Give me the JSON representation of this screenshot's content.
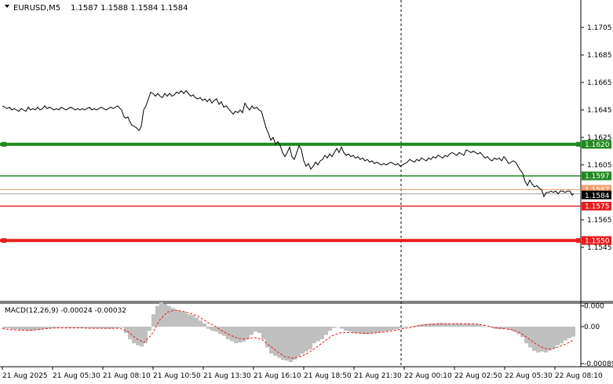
{
  "header": {
    "symbol_label": "EURUSD,M5",
    "ohlc": "1.1587 1.1588 1.1584 1.1584"
  },
  "price_axis": {
    "ticks": [
      "1.1705",
      "1.1685",
      "1.1665",
      "1.1645",
      "1.1625",
      "1.1605",
      "1.1565",
      "1.1545"
    ],
    "tick_values": [
      1.1705,
      1.1685,
      1.1665,
      1.1645,
      1.1625,
      1.1605,
      1.1565,
      1.1545
    ]
  },
  "levels": [
    {
      "name": "level-1-1620",
      "value": 1.162,
      "label": "1.1620",
      "color": "#1e8a1e",
      "thick": true
    },
    {
      "name": "level-1-1597",
      "value": 1.1597,
      "label": "1.1597",
      "color": "#1e8a1e",
      "thick": false
    },
    {
      "name": "level-1-1575",
      "value": 1.1575,
      "label": "1.1575",
      "color": "#e61e1e",
      "thick": false
    },
    {
      "name": "level-1-1550",
      "value": 1.155,
      "label": "1.1550",
      "color": "#e61e1e",
      "thick": true
    }
  ],
  "ask_label": "1.1587",
  "current_price_label": "1.1584",
  "macd": {
    "title": "MACD(12,26,9) -0.00024 -0.00032",
    "ticks": [
      "0.000",
      "0.00",
      "-0.00089"
    ],
    "tick_values": [
      0.0005,
      0.0,
      -0.00089
    ]
  },
  "time_axis": {
    "labels": [
      "21 Aug 2025",
      "21 Aug 05:30",
      "21 Aug 08:10",
      "21 Aug 10:50",
      "21 Aug 13:30",
      "21 Aug 16:10",
      "21 Aug 18:50",
      "21 Aug 21:30",
      "22 Aug 00:10",
      "22 Aug 02:50",
      "22 Aug 05:30",
      "22 Aug 08:10"
    ]
  },
  "colors": {
    "price_line": "#000000",
    "macd_hist": "#c0c0c0",
    "macd_signal": "#e61e1e",
    "ask_line": "#f0a070",
    "bid_line": "#a0a0a0",
    "current_label_bg": "#000000",
    "separator": "#000000"
  },
  "price_series": [
    [
      0,
      1.1648
    ],
    [
      3,
      1.1647
    ],
    [
      6,
      1.1646
    ],
    [
      9,
      1.1647
    ],
    [
      12,
      1.1645
    ],
    [
      15,
      1.1646
    ],
    [
      18,
      1.1645
    ],
    [
      21,
      1.1644
    ],
    [
      24,
      1.1646
    ],
    [
      27,
      1.1645
    ],
    [
      30,
      1.1644
    ],
    [
      33,
      1.1647
    ],
    [
      36,
      1.1645
    ],
    [
      39,
      1.1646
    ],
    [
      42,
      1.1645
    ],
    [
      45,
      1.1647
    ],
    [
      48,
      1.1645
    ],
    [
      51,
      1.1646
    ],
    [
      54,
      1.1648
    ],
    [
      57,
      1.1646
    ],
    [
      60,
      1.1647
    ],
    [
      63,
      1.1646
    ],
    [
      66,
      1.1645
    ],
    [
      69,
      1.1646
    ],
    [
      72,
      1.1645
    ],
    [
      75,
      1.1647
    ],
    [
      78,
      1.1646
    ],
    [
      81,
      1.1645
    ],
    [
      84,
      1.1646
    ],
    [
      87,
      1.1647
    ],
    [
      90,
      1.1646
    ],
    [
      93,
      1.1645
    ],
    [
      96,
      1.1646
    ],
    [
      99,
      1.1645
    ],
    [
      102,
      1.1646
    ],
    [
      105,
      1.1645
    ],
    [
      108,
      1.1646
    ],
    [
      111,
      1.1647
    ],
    [
      114,
      1.1645
    ],
    [
      117,
      1.1646
    ],
    [
      120,
      1.1645
    ],
    [
      123,
      1.1646
    ],
    [
      126,
      1.1647
    ],
    [
      129,
      1.1646
    ],
    [
      132,
      1.1645
    ],
    [
      135,
      1.1646
    ],
    [
      138,
      1.1647
    ],
    [
      141,
      1.1646
    ],
    [
      144,
      1.1647
    ],
    [
      147,
      1.1648
    ],
    [
      150,
      1.1646
    ],
    [
      152,
      1.1645
    ],
    [
      155,
      1.164
    ],
    [
      157,
      1.1639
    ],
    [
      160,
      1.164
    ],
    [
      162,
      1.1637
    ],
    [
      165,
      1.1634
    ],
    [
      168,
      1.1633
    ],
    [
      171,
      1.1632
    ],
    [
      174,
      1.163
    ],
    [
      177,
      1.1633
    ],
    [
      180,
      1.1645
    ],
    [
      183,
      1.1648
    ],
    [
      186,
      1.1653
    ],
    [
      189,
      1.1658
    ],
    [
      192,
      1.1657
    ],
    [
      195,
      1.1655
    ],
    [
      198,
      1.1657
    ],
    [
      201,
      1.1655
    ],
    [
      204,
      1.1654
    ],
    [
      207,
      1.1657
    ],
    [
      210,
      1.1655
    ],
    [
      213,
      1.1657
    ],
    [
      216,
      1.1655
    ],
    [
      219,
      1.1656
    ],
    [
      222,
      1.1658
    ],
    [
      225,
      1.1657
    ],
    [
      228,
      1.1659
    ],
    [
      231,
      1.1657
    ],
    [
      234,
      1.1659
    ],
    [
      237,
      1.1657
    ],
    [
      240,
      1.1655
    ],
    [
      243,
      1.1656
    ],
    [
      246,
      1.1654
    ],
    [
      249,
      1.1653
    ],
    [
      252,
      1.1654
    ],
    [
      255,
      1.1652
    ],
    [
      258,
      1.1653
    ],
    [
      261,
      1.1651
    ],
    [
      264,
      1.1653
    ],
    [
      267,
      1.165
    ],
    [
      270,
      1.1652
    ],
    [
      273,
      1.1653
    ],
    [
      276,
      1.1649
    ],
    [
      279,
      1.1651
    ],
    [
      282,
      1.1647
    ],
    [
      285,
      1.1648
    ],
    [
      288,
      1.1646
    ],
    [
      291,
      1.1644
    ],
    [
      294,
      1.1642
    ],
    [
      297,
      1.1644
    ],
    [
      300,
      1.1643
    ],
    [
      303,
      1.1645
    ],
    [
      306,
      1.1643
    ],
    [
      309,
      1.165
    ],
    [
      312,
      1.1647
    ],
    [
      315,
      1.1645
    ],
    [
      318,
      1.1648
    ],
    [
      321,
      1.1646
    ],
    [
      324,
      1.1647
    ],
    [
      327,
      1.1645
    ],
    [
      330,
      1.1644
    ],
    [
      333,
      1.1638
    ],
    [
      336,
      1.1632
    ],
    [
      339,
      1.1628
    ],
    [
      342,
      1.1623
    ],
    [
      345,
      1.1625
    ],
    [
      348,
      1.162
    ],
    [
      351,
      1.1622
    ],
    [
      354,
      1.1619
    ],
    [
      357,
      1.1614
    ],
    [
      360,
      1.1611
    ],
    [
      363,
      1.1614
    ],
    [
      366,
      1.1618
    ],
    [
      369,
      1.1611
    ],
    [
      372,
      1.1609
    ],
    [
      375,
      1.1614
    ],
    [
      378,
      1.1619
    ],
    [
      381,
      1.1616
    ],
    [
      384,
      1.1608
    ],
    [
      387,
      1.1604
    ],
    [
      390,
      1.1606
    ],
    [
      393,
      1.1602
    ],
    [
      396,
      1.1604
    ],
    [
      399,
      1.1607
    ],
    [
      402,
      1.1605
    ],
    [
      405,
      1.1608
    ],
    [
      408,
      1.1609
    ],
    [
      411,
      1.1612
    ],
    [
      414,
      1.161
    ],
    [
      417,
      1.1613
    ],
    [
      420,
      1.1611
    ],
    [
      423,
      1.1614
    ],
    [
      426,
      1.1617
    ],
    [
      429,
      1.1614
    ],
    [
      432,
      1.1618
    ],
    [
      435,
      1.1614
    ],
    [
      438,
      1.1612
    ],
    [
      441,
      1.1613
    ],
    [
      444,
      1.1611
    ],
    [
      447,
      1.1612
    ],
    [
      450,
      1.161
    ],
    [
      453,
      1.1611
    ],
    [
      456,
      1.1609
    ],
    [
      459,
      1.161
    ],
    [
      462,
      1.1608
    ],
    [
      465,
      1.1609
    ],
    [
      468,
      1.1607
    ],
    [
      471,
      1.1608
    ],
    [
      474,
      1.1606
    ],
    [
      477,
      1.1607
    ],
    [
      480,
      1.1606
    ],
    [
      483,
      1.1605
    ],
    [
      486,
      1.1606
    ],
    [
      489,
      1.1605
    ],
    [
      492,
      1.1606
    ],
    [
      495,
      1.1607
    ],
    [
      498,
      1.1606
    ],
    [
      501,
      1.1605
    ],
    [
      504,
      1.1606
    ],
    [
      507,
      1.1604
    ],
    [
      510,
      1.1605
    ],
    [
      513,
      1.1606
    ],
    [
      516,
      1.1607
    ],
    [
      519,
      1.1609
    ],
    [
      522,
      1.1608
    ],
    [
      525,
      1.1607
    ],
    [
      528,
      1.1609
    ],
    [
      531,
      1.1608
    ],
    [
      534,
      1.161
    ],
    [
      537,
      1.1609
    ],
    [
      540,
      1.1608
    ],
    [
      543,
      1.161
    ],
    [
      546,
      1.1609
    ],
    [
      549,
      1.1611
    ],
    [
      552,
      1.161
    ],
    [
      555,
      1.1612
    ],
    [
      558,
      1.1611
    ],
    [
      561,
      1.161
    ],
    [
      564,
      1.1612
    ],
    [
      567,
      1.1611
    ],
    [
      570,
      1.1613
    ],
    [
      573,
      1.1614
    ],
    [
      576,
      1.1613
    ],
    [
      579,
      1.1612
    ],
    [
      582,
      1.1614
    ],
    [
      585,
      1.1613
    ],
    [
      588,
      1.1612
    ],
    [
      591,
      1.1616
    ],
    [
      594,
      1.1615
    ],
    [
      597,
      1.1614
    ],
    [
      600,
      1.1615
    ],
    [
      603,
      1.1614
    ],
    [
      606,
      1.1613
    ],
    [
      609,
      1.1614
    ],
    [
      612,
      1.1612
    ],
    [
      615,
      1.161
    ],
    [
      618,
      1.1611
    ],
    [
      621,
      1.1609
    ],
    [
      624,
      1.1608
    ],
    [
      627,
      1.161
    ],
    [
      630,
      1.1609
    ],
    [
      633,
      1.161
    ],
    [
      636,
      1.1608
    ],
    [
      639,
      1.1611
    ],
    [
      642,
      1.1609
    ],
    [
      645,
      1.1606
    ],
    [
      648,
      1.1607
    ],
    [
      651,
      1.1608
    ],
    [
      654,
      1.1607
    ],
    [
      657,
      1.1604
    ],
    [
      660,
      1.1601
    ],
    [
      663,
      1.1599
    ],
    [
      666,
      1.1593
    ],
    [
      669,
      1.159
    ],
    [
      672,
      1.1594
    ],
    [
      675,
      1.1591
    ],
    [
      678,
      1.1589
    ],
    [
      681,
      1.159
    ],
    [
      684,
      1.1588
    ],
    [
      687,
      1.1587
    ],
    [
      690,
      1.1582
    ],
    [
      693,
      1.1585
    ],
    [
      696,
      1.1585
    ],
    [
      699,
      1.1586
    ],
    [
      702,
      1.1585
    ],
    [
      705,
      1.1586
    ],
    [
      708,
      1.1584
    ],
    [
      711,
      1.1586
    ],
    [
      714,
      1.1586
    ],
    [
      717,
      1.1585
    ],
    [
      720,
      1.1586
    ],
    [
      723,
      1.1586
    ],
    [
      726,
      1.1583
    ],
    [
      728,
      1.1584
    ]
  ],
  "macd_hist": [
    [
      0,
      -4e-05
    ],
    [
      10,
      -6e-05
    ],
    [
      20,
      -8e-05
    ],
    [
      30,
      -0.0001
    ],
    [
      40,
      -8e-05
    ],
    [
      50,
      -5e-05
    ],
    [
      60,
      -3e-05
    ],
    [
      70,
      -2e-05
    ],
    [
      80,
      -3e-05
    ],
    [
      90,
      -3e-05
    ],
    [
      100,
      -3e-05
    ],
    [
      110,
      -4e-05
    ],
    [
      120,
      -4e-05
    ],
    [
      130,
      -5e-05
    ],
    [
      140,
      -3e-05
    ],
    [
      150,
      -2e-05
    ],
    [
      155,
      -0.00015
    ],
    [
      160,
      -0.0003
    ],
    [
      165,
      -0.0004
    ],
    [
      170,
      -0.00045
    ],
    [
      175,
      -0.00048
    ],
    [
      180,
      -0.0004
    ],
    [
      185,
      -0.0001
    ],
    [
      190,
      0.0003
    ],
    [
      195,
      0.0005
    ],
    [
      200,
      0.0006
    ],
    [
      205,
      0.00055
    ],
    [
      210,
      0.0005
    ],
    [
      215,
      0.00045
    ],
    [
      220,
      0.0004
    ],
    [
      225,
      0.00037
    ],
    [
      230,
      0.00035
    ],
    [
      235,
      0.0003
    ],
    [
      240,
      0.00028
    ],
    [
      245,
      0.00022
    ],
    [
      250,
      0.00015
    ],
    [
      255,
      8e-05
    ],
    [
      260,
      -5e-05
    ],
    [
      265,
      -0.0001
    ],
    [
      270,
      -0.00012
    ],
    [
      275,
      -0.00018
    ],
    [
      280,
      -0.00022
    ],
    [
      285,
      -0.0003
    ],
    [
      290,
      -0.00035
    ],
    [
      295,
      -0.0004
    ],
    [
      300,
      -0.00038
    ],
    [
      305,
      -0.00036
    ],
    [
      310,
      -0.0003
    ],
    [
      315,
      -0.0002
    ],
    [
      320,
      -0.00012
    ],
    [
      325,
      -0.00015
    ],
    [
      330,
      -0.0003
    ],
    [
      335,
      -0.0005
    ],
    [
      340,
      -0.00065
    ],
    [
      345,
      -0.0007
    ],
    [
      350,
      -0.00075
    ],
    [
      355,
      -0.0008
    ],
    [
      360,
      -0.00082
    ],
    [
      365,
      -0.00085
    ],
    [
      370,
      -0.0008
    ],
    [
      375,
      -0.00072
    ],
    [
      380,
      -0.00065
    ],
    [
      385,
      -0.0006
    ],
    [
      390,
      -0.00055
    ],
    [
      395,
      -0.0004
    ],
    [
      400,
      -0.00035
    ],
    [
      405,
      -0.0003
    ],
    [
      410,
      -0.0002
    ],
    [
      415,
      -0.0001
    ],
    [
      420,
      -3e-05
    ],
    [
      425,
      0.0
    ],
    [
      430,
      -5e-05
    ],
    [
      435,
      -0.0001
    ],
    [
      440,
      -0.00012
    ],
    [
      445,
      -0.00015
    ],
    [
      450,
      -0.00016
    ],
    [
      455,
      -0.00017
    ],
    [
      460,
      -0.00018
    ],
    [
      465,
      -0.00017
    ],
    [
      470,
      -0.00016
    ],
    [
      475,
      -0.00015
    ],
    [
      480,
      -0.00013
    ],
    [
      485,
      -0.00011
    ],
    [
      490,
      -0.0001
    ],
    [
      495,
      -8e-05
    ],
    [
      500,
      -6e-05
    ],
    [
      505,
      -4e-05
    ],
    [
      510,
      -2e-05
    ],
    [
      515,
      0.0
    ],
    [
      520,
      2e-05
    ],
    [
      525,
      3e-05
    ],
    [
      530,
      5e-05
    ],
    [
      535,
      6e-05
    ],
    [
      540,
      7e-05
    ],
    [
      545,
      8e-05
    ],
    [
      550,
      8e-05
    ],
    [
      555,
      9e-05
    ],
    [
      560,
      8e-05
    ],
    [
      565,
      8e-05
    ],
    [
      570,
      7e-05
    ],
    [
      575,
      8e-05
    ],
    [
      580,
      8e-05
    ],
    [
      585,
      7e-05
    ],
    [
      590,
      8e-05
    ],
    [
      595,
      7e-05
    ],
    [
      600,
      6e-05
    ],
    [
      605,
      6e-05
    ],
    [
      610,
      3e-05
    ],
    [
      615,
      0.0
    ],
    [
      620,
      -2e-05
    ],
    [
      625,
      -5e-05
    ],
    [
      630,
      -6e-05
    ],
    [
      635,
      -6e-05
    ],
    [
      640,
      -5e-05
    ],
    [
      645,
      -8e-05
    ],
    [
      650,
      -0.00012
    ],
    [
      655,
      -0.00018
    ],
    [
      660,
      -0.00025
    ],
    [
      665,
      -0.0004
    ],
    [
      670,
      -0.0005
    ],
    [
      675,
      -0.00058
    ],
    [
      680,
      -0.00062
    ],
    [
      685,
      -0.0006
    ],
    [
      690,
      -0.00062
    ],
    [
      695,
      -0.00058
    ],
    [
      700,
      -0.00052
    ],
    [
      705,
      -0.00045
    ],
    [
      710,
      -0.0004
    ],
    [
      715,
      -0.00033
    ],
    [
      720,
      -0.00028
    ],
    [
      725,
      -0.00024
    ]
  ],
  "macd_signal": [
    [
      0,
      -5e-05
    ],
    [
      10,
      -7e-05
    ],
    [
      20,
      -8e-05
    ],
    [
      30,
      -9e-05
    ],
    [
      40,
      -8e-05
    ],
    [
      50,
      -6e-05
    ],
    [
      60,
      -4e-05
    ],
    [
      70,
      -3e-05
    ],
    [
      80,
      -3e-05
    ],
    [
      90,
      -3e-05
    ],
    [
      100,
      -3e-05
    ],
    [
      110,
      -4e-05
    ],
    [
      120,
      -4e-05
    ],
    [
      130,
      -4e-05
    ],
    [
      140,
      -4e-05
    ],
    [
      150,
      -4e-05
    ],
    [
      160,
      -0.00012
    ],
    [
      170,
      -0.00028
    ],
    [
      180,
      -0.00038
    ],
    [
      190,
      -0.0002
    ],
    [
      200,
      0.00015
    ],
    [
      210,
      0.00035
    ],
    [
      220,
      0.0004
    ],
    [
      230,
      0.00037
    ],
    [
      240,
      0.00032
    ],
    [
      250,
      0.00025
    ],
    [
      260,
      0.00012
    ],
    [
      270,
      2e-05
    ],
    [
      280,
      -0.0001
    ],
    [
      290,
      -0.0002
    ],
    [
      300,
      -0.00028
    ],
    [
      310,
      -0.0003
    ],
    [
      320,
      -0.00026
    ],
    [
      330,
      -0.0003
    ],
    [
      340,
      -0.00045
    ],
    [
      350,
      -0.0006
    ],
    [
      360,
      -0.00072
    ],
    [
      370,
      -0.00076
    ],
    [
      380,
      -0.00072
    ],
    [
      390,
      -0.00063
    ],
    [
      400,
      -0.0005
    ],
    [
      410,
      -0.00036
    ],
    [
      420,
      -0.00022
    ],
    [
      430,
      -0.00015
    ],
    [
      440,
      -0.00014
    ],
    [
      450,
      -0.00015
    ],
    [
      460,
      -0.00016
    ],
    [
      470,
      -0.00016
    ],
    [
      480,
      -0.00014
    ],
    [
      490,
      -0.00012
    ],
    [
      500,
      -9e-05
    ],
    [
      510,
      -5e-05
    ],
    [
      520,
      -2e-05
    ],
    [
      530,
      2e-05
    ],
    [
      540,
      5e-05
    ],
    [
      550,
      6e-05
    ],
    [
      560,
      7e-05
    ],
    [
      570,
      7e-05
    ],
    [
      580,
      7e-05
    ],
    [
      590,
      7e-05
    ],
    [
      600,
      7e-05
    ],
    [
      610,
      5e-05
    ],
    [
      620,
      1e-05
    ],
    [
      630,
      -3e-05
    ],
    [
      640,
      -5e-05
    ],
    [
      650,
      -8e-05
    ],
    [
      660,
      -0.00015
    ],
    [
      670,
      -0.00028
    ],
    [
      680,
      -0.00042
    ],
    [
      690,
      -0.00052
    ],
    [
      700,
      -0.00054
    ],
    [
      710,
      -0.00048
    ],
    [
      720,
      -0.0004
    ],
    [
      728,
      -0.00032
    ]
  ]
}
